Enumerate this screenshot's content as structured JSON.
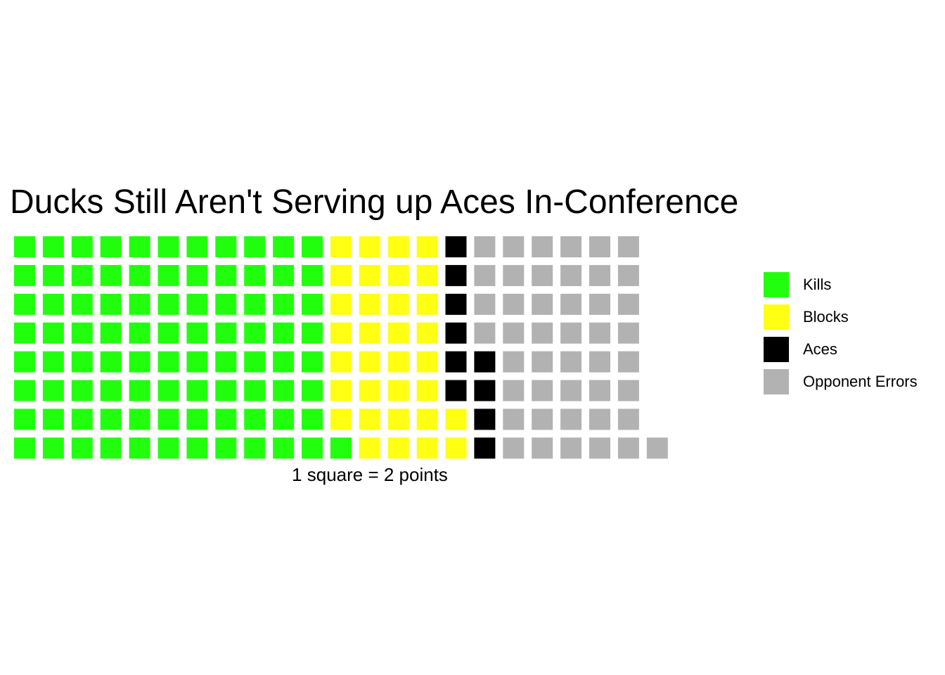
{
  "chart_data": {
    "type": "waffle",
    "title": "Ducks Still Aren't Serving up Aces In-Conference",
    "caption": "1 square = 2 points",
    "rows": 8,
    "fill_order": "column-major, bottom-to-top",
    "categories": [
      "Kills",
      "Blocks",
      "Aces",
      "Opponent Errors"
    ],
    "values": [
      89,
      33,
      10,
      45
    ],
    "colors": [
      "#22ff0e",
      "#ffff14",
      "#000000",
      "#b2b2b2"
    ],
    "legend_position": "right"
  }
}
